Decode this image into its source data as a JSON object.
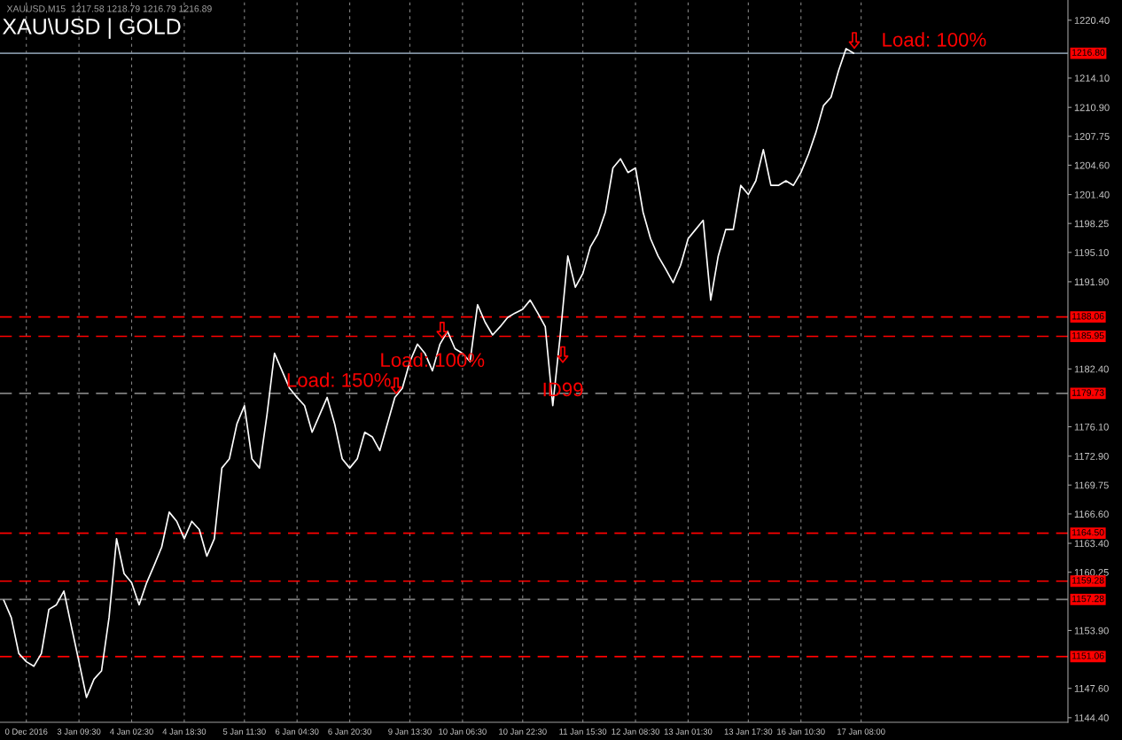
{
  "chart_data": {
    "type": "line",
    "title": "XAU\\USD | GOLD",
    "subtitle": "XAUUSD,M15  1217.58 1218.79 1216.79 1216.89",
    "categories": [
      null,
      null,
      null,
      "0 Dec 2016",
      null,
      null,
      null,
      null,
      null,
      null,
      "3 Jan 09:30",
      null,
      null,
      null,
      null,
      null,
      null,
      "4 Jan 02:30",
      null,
      null,
      null,
      null,
      null,
      null,
      "4 Jan 18:30",
      null,
      null,
      null,
      null,
      null,
      null,
      null,
      "5 Jan 11:30",
      null,
      null,
      null,
      null,
      null,
      null,
      "6 Jan 04:30",
      null,
      null,
      null,
      null,
      null,
      null,
      "6 Jan 20:30",
      null,
      null,
      null,
      null,
      null,
      null,
      null,
      "9 Jan 13:30",
      null,
      null,
      null,
      null,
      null,
      null,
      "10 Jan 06:30",
      null,
      null,
      null,
      null,
      null,
      null,
      null,
      "10 Jan 22:30",
      null,
      null,
      null,
      null,
      null,
      null,
      null,
      "11 Jan 15:30",
      null,
      null,
      null,
      null,
      null,
      null,
      "12 Jan 08:30",
      null,
      null,
      null,
      null,
      null,
      null,
      "13 Jan 01:30",
      null,
      null,
      null,
      null,
      null,
      null,
      null,
      "13 Jan 17:30",
      null,
      null,
      null,
      null,
      null,
      null,
      "16 Jan 10:30",
      null,
      null,
      null,
      null,
      null,
      null,
      null,
      "17 Jan 08:00",
      null,
      null,
      null,
      null,
      null,
      null,
      null,
      null,
      null,
      null,
      null,
      null,
      null,
      null,
      null,
      null,
      null,
      null,
      null,
      null,
      null,
      null,
      null,
      null,
      null,
      null,
      null
    ],
    "series": [
      {
        "color": "#ffffff",
        "values": [
          1157.2,
          1155.3,
          1151.4,
          1150.5,
          1150.0,
          1151.4,
          1156.2,
          1156.7,
          1158.2,
          1154.3,
          1150.5,
          1146.6,
          1148.6,
          1149.5,
          1155.3,
          1163.9,
          1160.1,
          1159.1,
          1156.7,
          1159.1,
          1161.0,
          1163.0,
          1166.8,
          1165.8,
          1163.9,
          1165.8,
          1164.9,
          1162.0,
          1163.9,
          1171.6,
          1172.6,
          1176.4,
          1178.4,
          1172.6,
          1171.6,
          1177.4,
          1184.1,
          1182.2,
          1180.3,
          1179.3,
          1178.4,
          1175.5,
          1177.4,
          1179.3,
          1176.4,
          1172.6,
          1171.6,
          1172.6,
          1175.5,
          1175.0,
          1173.5,
          1176.4,
          1179.3,
          1180.3,
          1183.2,
          1185.1,
          1184.1,
          1182.2,
          1185.1,
          1186.5,
          1184.6,
          1184.1,
          1183.2,
          1189.4,
          1187.5,
          1186.1,
          1187.0,
          1188.0,
          1188.5,
          1188.9,
          1189.9,
          1188.5,
          1187.0,
          1178.4,
          1186.1,
          1194.7,
          1191.3,
          1192.8,
          1195.7,
          1197.1,
          1199.5,
          1204.3,
          1205.3,
          1203.8,
          1204.3,
          1199.5,
          1196.6,
          1194.7,
          1193.3,
          1191.8,
          1193.7,
          1196.6,
          1197.6,
          1198.6,
          1189.9,
          1194.7,
          1197.6,
          1197.6,
          1202.4,
          1201.4,
          1202.9,
          1206.3,
          1202.4,
          1202.4,
          1202.9,
          1202.4,
          1203.8,
          1205.8,
          1208.2,
          1211.1,
          1212.0,
          1214.9,
          1217.3,
          1216.8,
          null,
          null,
          null,
          null,
          null,
          null,
          null,
          null,
          null,
          null,
          null,
          null,
          null,
          null,
          null,
          null,
          null,
          null,
          null,
          null,
          null,
          null,
          null,
          null,
          null,
          null,
          null,
          null
        ]
      }
    ],
    "ylim": [
      1143.9,
      1222.6
    ],
    "yticks": [
      {
        "value": 1220.4,
        "label": "1220.40"
      },
      {
        "value": 1214.1,
        "label": "1214.10"
      },
      {
        "value": 1210.9,
        "label": "1210.90"
      },
      {
        "value": 1207.75,
        "label": "1207.75"
      },
      {
        "value": 1204.6,
        "label": "1204.60"
      },
      {
        "value": 1201.4,
        "label": "1201.40"
      },
      {
        "value": 1198.25,
        "label": "1198.25"
      },
      {
        "value": 1195.1,
        "label": "1195.10"
      },
      {
        "value": 1191.9,
        "label": "1191.90"
      },
      {
        "value": 1182.4,
        "label": "1182.40"
      },
      {
        "value": 1176.1,
        "label": "1176.10"
      },
      {
        "value": 1172.9,
        "label": "1172.90"
      },
      {
        "value": 1169.75,
        "label": "1169.75"
      },
      {
        "value": 1166.6,
        "label": "1166.60"
      },
      {
        "value": 1163.4,
        "label": "1163.40"
      },
      {
        "value": 1160.25,
        "label": "1160.25"
      },
      {
        "value": 1153.9,
        "label": "1153.90"
      },
      {
        "value": 1147.6,
        "label": "1147.60"
      },
      {
        "value": 1144.4,
        "label": "1144.40"
      }
    ],
    "ref_lines": [
      {
        "axis": "y",
        "value": 1216.8,
        "label": "1216.80",
        "color": "#8090a0",
        "line_style": "solid"
      },
      {
        "axis": "y",
        "value": 1188.06,
        "label": "1188.06",
        "color": "#ff0000",
        "line_style": "dashed"
      },
      {
        "axis": "y",
        "value": 1185.95,
        "label": "1185.95",
        "color": "#ff0000",
        "line_style": "dashed"
      },
      {
        "axis": "y",
        "value": 1179.73,
        "label": "1179.73",
        "color": "#808080",
        "line_style": "dashed"
      },
      {
        "axis": "y",
        "value": 1164.5,
        "label": "1164.50",
        "color": "#ff0000",
        "line_style": "dashed"
      },
      {
        "axis": "y",
        "value": 1159.28,
        "label": "1159.28",
        "color": "#ff0000",
        "line_style": "dashed"
      },
      {
        "axis": "y",
        "value": 1157.28,
        "label": "1157.28",
        "color": "#808080",
        "line_style": "dashed"
      },
      {
        "axis": "y",
        "value": 1151.06,
        "label": "1151.06",
        "color": "#ff0000",
        "line_style": "dashed"
      }
    ],
    "annotations": [
      "Load: 150%",
      "Load: 100%",
      "ID99",
      "Load: 100%"
    ],
    "grid": "x",
    "legend": false,
    "marker": "none",
    "line_style": "solid"
  }
}
